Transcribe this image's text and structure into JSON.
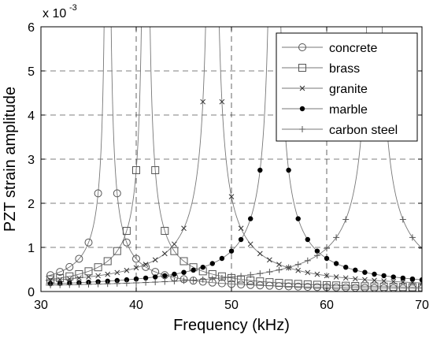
{
  "chart_data": {
    "type": "line",
    "xlabel": "Frequency (kHz)",
    "ylabel": "PZT strain amplitude",
    "y_exponent_base": "x 10",
    "y_exponent_power": "-3",
    "xlim": [
      30,
      70
    ],
    "ylim": [
      0,
      6
    ],
    "x_ticks": [
      30,
      40,
      50,
      60,
      70
    ],
    "y_ticks": [
      0,
      1,
      2,
      3,
      4,
      5,
      6
    ],
    "x_tick_labels": [
      "30",
      "40",
      "50",
      "60",
      "70"
    ],
    "y_tick_labels": [
      "0",
      "1",
      "2",
      "3",
      "4",
      "5",
      "6"
    ],
    "grid": "dashed",
    "legend_position": "top-right",
    "series": [
      {
        "name": "concrete",
        "marker": "circle",
        "f0": 37.0,
        "amp": 4.45,
        "gamma": 1.6,
        "curve_x": [
          30.5,
          70
        ],
        "marker_x": [
          31,
          32,
          33,
          34,
          35,
          36,
          38,
          39,
          40,
          41,
          42,
          43,
          44,
          45,
          46,
          47,
          48,
          49,
          50,
          51,
          52,
          53,
          54,
          55,
          56,
          57,
          58,
          59,
          60,
          61,
          62,
          63,
          64,
          65,
          66,
          67,
          68,
          69,
          70
        ]
      },
      {
        "name": "brass",
        "marker": "square",
        "f0": 41.0,
        "amp": 5.5,
        "gamma": 2.0,
        "curve_x": [
          30.5,
          70
        ],
        "marker_x": [
          31,
          32,
          33,
          34,
          35,
          36,
          37,
          38,
          39,
          40,
          42,
          43,
          44,
          45,
          46,
          47,
          48,
          49,
          50,
          51,
          52,
          53,
          54,
          55,
          56,
          57,
          58,
          59,
          60,
          61,
          62,
          63,
          64,
          65,
          66,
          67,
          68,
          69,
          70
        ]
      },
      {
        "name": "granite",
        "marker": "x",
        "f0": 48.0,
        "amp": 8.6,
        "gamma": 2.0,
        "curve_x": [
          30.5,
          70
        ],
        "marker_x": [
          31,
          32,
          33,
          34,
          35,
          36,
          37,
          38,
          39,
          40,
          41,
          42,
          43,
          44,
          45,
          47,
          49,
          50,
          51,
          52,
          53,
          54,
          55,
          56,
          57,
          58,
          59,
          60,
          61,
          62,
          63,
          64,
          65,
          66,
          67,
          68,
          69,
          70
        ]
      },
      {
        "name": "marble",
        "marker": "dot",
        "f0": 54.5,
        "amp": 8.25,
        "gamma": 3.0,
        "curve_x": [
          30.5,
          70
        ],
        "marker_x": [
          31,
          32,
          33,
          34,
          35,
          36,
          37,
          38,
          39,
          40,
          41,
          42,
          43,
          44,
          45,
          46,
          47,
          48,
          49,
          50,
          51,
          52,
          53,
          56,
          57,
          58,
          59,
          60,
          61,
          62,
          63,
          64,
          65,
          66,
          67,
          68,
          69,
          70
        ]
      },
      {
        "name": "carbon steel",
        "marker": "plus",
        "f0": 65.0,
        "amp": 9.8,
        "gamma": 4.0,
        "curve_x": [
          30.5,
          70
        ],
        "marker_x": [
          31,
          32,
          33,
          34,
          35,
          36,
          37,
          38,
          39,
          40,
          41,
          42,
          43,
          44,
          45,
          46,
          47,
          48,
          49,
          50,
          51,
          52,
          53,
          54,
          55,
          56,
          57,
          58,
          59,
          60,
          61,
          62,
          68,
          69,
          70
        ]
      }
    ]
  }
}
